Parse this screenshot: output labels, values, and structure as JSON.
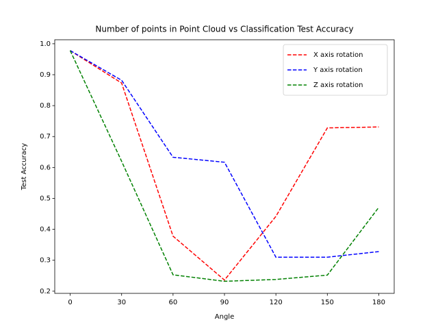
{
  "chart_data": {
    "type": "line",
    "title": "Number of points in Point Cloud vs Classification Test Accuracy",
    "x_label": "Angle",
    "y_label": "Test Accuracy",
    "x": [
      0,
      30,
      60,
      90,
      120,
      150,
      180
    ],
    "series": [
      {
        "name": "X axis rotation",
        "color": "#ff0000",
        "values": [
          0.978,
          0.873,
          0.378,
          0.236,
          0.442,
          0.728,
          0.731
        ]
      },
      {
        "name": "Y axis rotation",
        "color": "#0000ff",
        "values": [
          0.978,
          0.882,
          0.633,
          0.617,
          0.31,
          0.31,
          0.328
        ]
      },
      {
        "name": "Z axis rotation",
        "color": "#008000",
        "values": [
          0.978,
          0.62,
          0.253,
          0.232,
          0.238,
          0.252,
          0.471
        ]
      }
    ],
    "xlim": [
      -9,
      189
    ],
    "xticks": [
      0,
      30,
      60,
      90,
      120,
      150,
      180
    ],
    "ylim": [
      0.193,
      1.013
    ],
    "yticks": [
      {
        "value": 0.2,
        "label": "0.2"
      },
      {
        "value": 0.3,
        "label": "0.3"
      },
      {
        "value": 0.4,
        "label": "0.4"
      },
      {
        "value": 0.5,
        "label": "0.5"
      },
      {
        "value": 0.6,
        "label": "0.6"
      },
      {
        "value": 0.7,
        "label": "0.7"
      },
      {
        "value": 0.8,
        "label": "0.8"
      },
      {
        "value": 0.9,
        "label": "0.9"
      },
      {
        "value": 1.0,
        "label": "1.0"
      }
    ],
    "legend": "upper right",
    "line_style": "dashed"
  }
}
